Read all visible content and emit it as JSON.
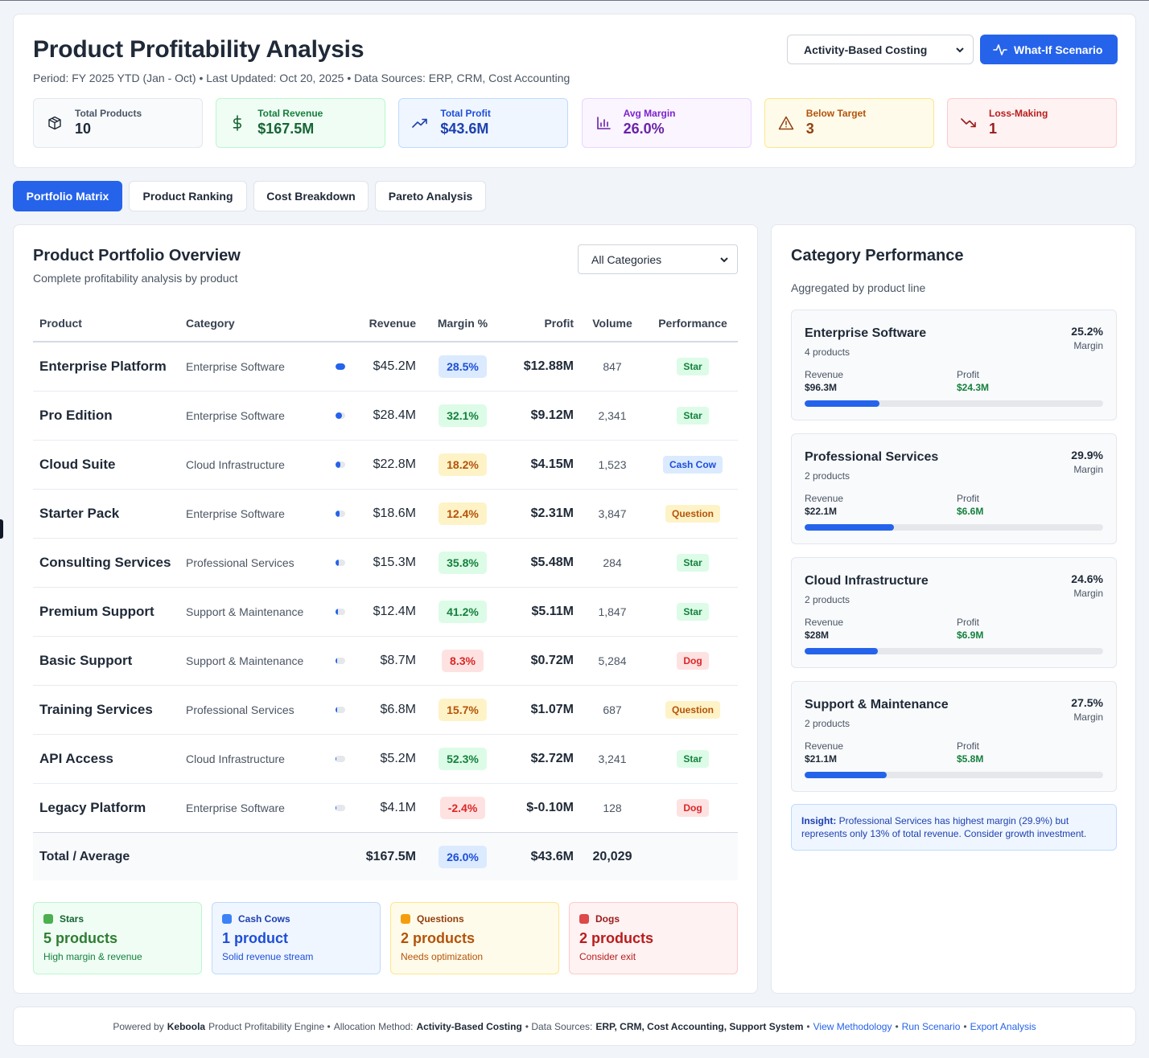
{
  "header": {
    "title": "Product Profitability Analysis",
    "meta": "Period: FY 2025 YTD (Jan - Oct) • Last Updated: Oct 20, 2025 • Data Sources: ERP, CRM, Cost Accounting",
    "method_select": "Activity-Based Costing",
    "whatif_label": "What-If Scenario"
  },
  "kpis": [
    {
      "label": "Total Products",
      "value": "10",
      "icon": "box-icon",
      "bg": "#f8fafc",
      "border": "#e3e7ee",
      "label_color": "#4b5563",
      "value_color": "#1f2937"
    },
    {
      "label": "Total Revenue",
      "value": "$167.5M",
      "icon": "dollar-icon",
      "bg": "#f0fdf4",
      "border": "#bbf7d0",
      "label_color": "#15803d",
      "value_color": "#166534"
    },
    {
      "label": "Total Profit",
      "value": "$43.6M",
      "icon": "trend-up-icon",
      "bg": "#eff6ff",
      "border": "#bfdbfe",
      "label_color": "#1d4ed8",
      "value_color": "#1e40af"
    },
    {
      "label": "Avg Margin",
      "value": "26.0%",
      "icon": "bar-chart-icon",
      "bg": "#faf5ff",
      "border": "#e9d5ff",
      "label_color": "#7e22ce",
      "value_color": "#6b21a8"
    },
    {
      "label": "Below Target",
      "value": "3",
      "icon": "warning-icon",
      "bg": "#fffbeb",
      "border": "#fde68a",
      "label_color": "#b45309",
      "value_color": "#92400e"
    },
    {
      "label": "Loss-Making",
      "value": "1",
      "icon": "trend-down-icon",
      "bg": "#fef2f2",
      "border": "#fecaca",
      "label_color": "#b91c1c",
      "value_color": "#991b1b"
    }
  ],
  "tabs": [
    "Portfolio Matrix",
    "Product Ranking",
    "Cost Breakdown",
    "Pareto Analysis"
  ],
  "main": {
    "title": "Product Portfolio Overview",
    "subtitle": "Complete profitability analysis by product",
    "category_select": "All Categories",
    "columns": [
      "Product",
      "Category",
      "Revenue",
      "Margin %",
      "Profit",
      "Volume",
      "Performance"
    ],
    "rows": [
      {
        "product": "Enterprise Platform",
        "category": "Enterprise Software",
        "revenue": "$45.2M",
        "revenue_share": 1.0,
        "margin": "28.5%",
        "margin_style": "blue",
        "profit": "$12.88M",
        "volume": "847",
        "performance": "Star"
      },
      {
        "product": "Pro Edition",
        "category": "Enterprise Software",
        "revenue": "$28.4M",
        "revenue_share": 0.63,
        "margin": "32.1%",
        "margin_style": "green",
        "profit": "$9.12M",
        "volume": "2,341",
        "performance": "Star"
      },
      {
        "product": "Cloud Suite",
        "category": "Cloud Infrastructure",
        "revenue": "$22.8M",
        "revenue_share": 0.5,
        "margin": "18.2%",
        "margin_style": "yellow",
        "profit": "$4.15M",
        "volume": "1,523",
        "performance": "Cash Cow"
      },
      {
        "product": "Starter Pack",
        "category": "Enterprise Software",
        "revenue": "$18.6M",
        "revenue_share": 0.41,
        "margin": "12.4%",
        "margin_style": "yellow",
        "profit": "$2.31M",
        "volume": "3,847",
        "performance": "Question"
      },
      {
        "product": "Consulting Services",
        "category": "Professional Services",
        "revenue": "$15.3M",
        "revenue_share": 0.34,
        "margin": "35.8%",
        "margin_style": "green",
        "profit": "$5.48M",
        "volume": "284",
        "performance": "Star"
      },
      {
        "product": "Premium Support",
        "category": "Support & Maintenance",
        "revenue": "$12.4M",
        "revenue_share": 0.27,
        "margin": "41.2%",
        "margin_style": "green",
        "profit": "$5.11M",
        "volume": "1,847",
        "performance": "Star"
      },
      {
        "product": "Basic Support",
        "category": "Support & Maintenance",
        "revenue": "$8.7M",
        "revenue_share": 0.19,
        "margin": "8.3%",
        "margin_style": "red",
        "profit": "$0.72M",
        "volume": "5,284",
        "performance": "Dog"
      },
      {
        "product": "Training Services",
        "category": "Professional Services",
        "revenue": "$6.8M",
        "revenue_share": 0.15,
        "margin": "15.7%",
        "margin_style": "yellow",
        "profit": "$1.07M",
        "volume": "687",
        "performance": "Question"
      },
      {
        "product": "API Access",
        "category": "Cloud Infrastructure",
        "revenue": "$5.2M",
        "revenue_share": 0.12,
        "margin": "52.3%",
        "margin_style": "green",
        "profit": "$2.72M",
        "volume": "3,241",
        "performance": "Star"
      },
      {
        "product": "Legacy Platform",
        "category": "Enterprise Software",
        "revenue": "$4.1M",
        "revenue_share": 0.09,
        "margin": "-2.4%",
        "margin_style": "red",
        "profit": "$-0.10M",
        "volume": "128",
        "performance": "Dog"
      }
    ],
    "total": {
      "label": "Total / Average",
      "revenue": "$167.5M",
      "margin": "26.0%",
      "profit": "$43.6M",
      "volume": "20,029"
    }
  },
  "quadrants": [
    {
      "name": "Stars",
      "count": "5 products",
      "desc": "High margin & revenue",
      "color": "#4caf50",
      "bg": "#f0fdf4",
      "border": "#bbf7d0",
      "title_color": "#166534",
      "value_color": "#2e7d32",
      "desc_color": "#15803d"
    },
    {
      "name": "Cash Cows",
      "count": "1 product",
      "desc": "Solid revenue stream",
      "color": "#3b82f6",
      "bg": "#eff6ff",
      "border": "#bfdbfe",
      "title_color": "#1e40af",
      "value_color": "#1d4ed8",
      "desc_color": "#1d4ed8"
    },
    {
      "name": "Questions",
      "count": "2 products",
      "desc": "Needs optimization",
      "color": "#f59e0b",
      "bg": "#fffbeb",
      "border": "#fde68a",
      "title_color": "#92400e",
      "value_color": "#b45309",
      "desc_color": "#b45309"
    },
    {
      "name": "Dogs",
      "count": "2 products",
      "desc": "Consider exit",
      "color": "#dc4a4a",
      "bg": "#fef2f2",
      "border": "#fecaca",
      "title_color": "#991b1b",
      "value_color": "#b91c1c",
      "desc_color": "#b91c1c"
    }
  ],
  "side": {
    "title": "Category Performance",
    "subtitle": "Aggregated by product line",
    "margin_label": "Margin",
    "revenue_label": "Revenue",
    "profit_label": "Profit",
    "categories": [
      {
        "name": "Enterprise Software",
        "count": "4 products",
        "margin": "25.2%",
        "revenue": "$96.3M",
        "profit": "$24.3M",
        "progress": 0.25
      },
      {
        "name": "Professional Services",
        "count": "2 products",
        "margin": "29.9%",
        "revenue": "$22.1M",
        "profit": "$6.6M",
        "progress": 0.3
      },
      {
        "name": "Cloud Infrastructure",
        "count": "2 products",
        "margin": "24.6%",
        "revenue": "$28M",
        "profit": "$6.9M",
        "progress": 0.245
      },
      {
        "name": "Support & Maintenance",
        "count": "2 products",
        "margin": "27.5%",
        "revenue": "$21.1M",
        "profit": "$5.8M",
        "progress": 0.275
      }
    ],
    "insight_label": "Insight:",
    "insight_text": "Professional Services has highest margin (29.9%) but represents only 13% of total revenue. Consider growth investment."
  },
  "footer": {
    "powered_prefix": "Powered by",
    "brand": "Keboola",
    "engine": "Product Profitability Engine •",
    "allocation_prefix": "Allocation Method:",
    "allocation_value": "Activity-Based Costing",
    "sources_prefix": "• Data Sources:",
    "sources_value": "ERP, CRM, Cost Accounting, Support System",
    "sep": "•",
    "link_methodology": "View Methodology",
    "link_run": "Run Scenario",
    "link_export": "Export Analysis"
  }
}
